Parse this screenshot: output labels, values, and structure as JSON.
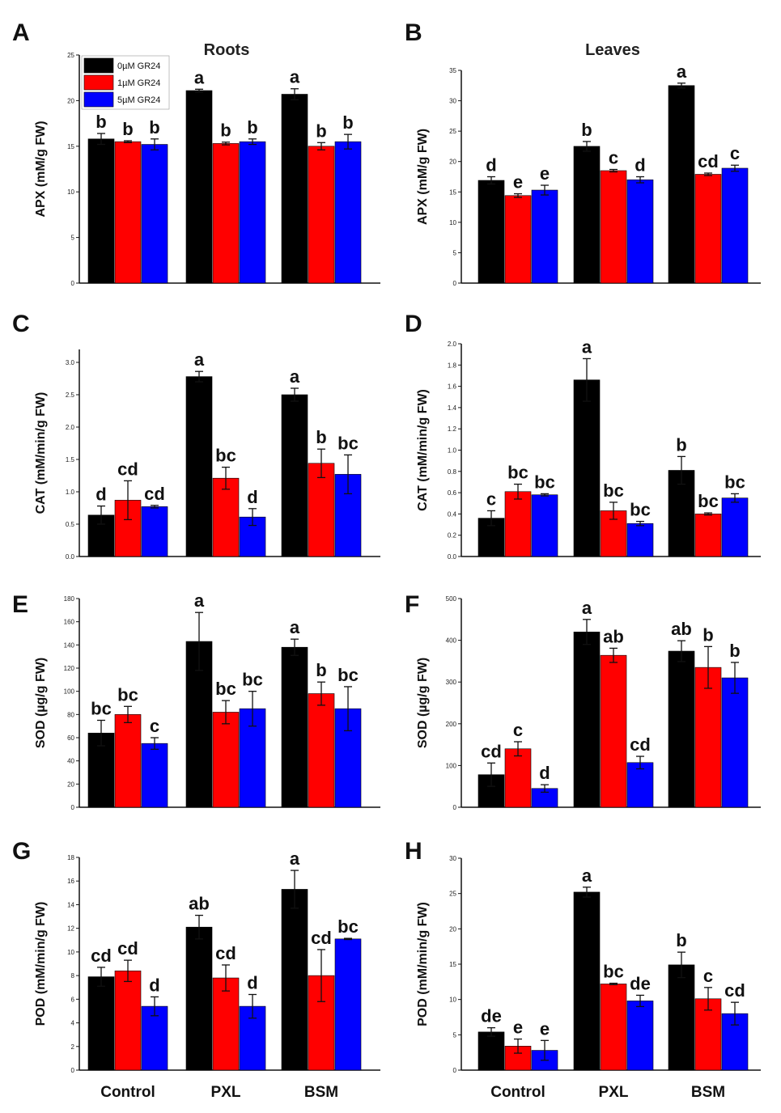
{
  "column_titles": {
    "left": "Roots",
    "right": "Leaves"
  },
  "categories": [
    "Control",
    "PXL",
    "BSM"
  ],
  "legend": [
    {
      "name": "0µM GR24",
      "color": "#000000"
    },
    {
      "name": "1µM GR24",
      "color": "#ff0000"
    },
    {
      "name": "5µM GR24",
      "color": "#0000ff"
    }
  ],
  "chart_data": [
    {
      "panel": "A",
      "type": "bar",
      "title": "Roots",
      "ylabel": "APX (mM/g FW)",
      "categories": [
        "Control",
        "PXL",
        "BSM"
      ],
      "ylim": [
        0,
        25
      ],
      "yticks": [
        0,
        5,
        10,
        15,
        20,
        25
      ],
      "series": [
        {
          "name": "0µM GR24",
          "values": [
            15.8,
            21.1,
            20.7
          ],
          "errors": [
            0.6,
            0.15,
            0.6
          ],
          "labels": [
            "b",
            "a",
            "a"
          ]
        },
        {
          "name": "1µM GR24",
          "values": [
            15.5,
            15.3,
            15.0
          ],
          "errors": [
            0.1,
            0.15,
            0.4
          ],
          "labels": [
            "b",
            "b",
            "b"
          ]
        },
        {
          "name": "5µM GR24",
          "values": [
            15.2,
            15.5,
            15.5
          ],
          "errors": [
            0.6,
            0.3,
            0.8
          ],
          "labels": [
            "b",
            "b",
            "b"
          ]
        }
      ]
    },
    {
      "panel": "B",
      "type": "bar",
      "title": "Leaves",
      "ylabel": "APX (mM/g FW)",
      "categories": [
        "Control",
        "PXL",
        "BSM"
      ],
      "ylim": [
        0,
        35
      ],
      "yticks": [
        0,
        5,
        10,
        15,
        20,
        25,
        30,
        35
      ],
      "series": [
        {
          "name": "0µM GR24",
          "values": [
            16.9,
            22.5,
            32.5
          ],
          "errors": [
            0.6,
            0.8,
            0.4
          ],
          "labels": [
            "d",
            "b",
            "a"
          ]
        },
        {
          "name": "1µM GR24",
          "values": [
            14.4,
            18.5,
            17.9
          ],
          "errors": [
            0.3,
            0.2,
            0.2
          ],
          "labels": [
            "e",
            "c",
            "cd"
          ]
        },
        {
          "name": "5µM GR24",
          "values": [
            15.3,
            17.0,
            18.9
          ],
          "errors": [
            0.8,
            0.5,
            0.5
          ],
          "labels": [
            "e",
            "d",
            "c"
          ]
        }
      ]
    },
    {
      "panel": "C",
      "type": "bar",
      "title": "",
      "ylabel": "CAT (mM/min/g FW)",
      "categories": [
        "Control",
        "PXL",
        "BSM"
      ],
      "ylim": [
        0,
        3.2
      ],
      "yticks": [
        0.0,
        0.5,
        1.0,
        1.5,
        2.0,
        2.5,
        3.0
      ],
      "series": [
        {
          "name": "0µM GR24",
          "values": [
            0.64,
            2.78,
            2.5
          ],
          "errors": [
            0.14,
            0.08,
            0.1
          ],
          "labels": [
            "d",
            "a",
            "a"
          ]
        },
        {
          "name": "1µM GR24",
          "values": [
            0.87,
            1.21,
            1.44
          ],
          "errors": [
            0.3,
            0.17,
            0.22
          ],
          "labels": [
            "cd",
            "bc",
            "b"
          ]
        },
        {
          "name": "5µM GR24",
          "values": [
            0.77,
            0.61,
            1.27
          ],
          "errors": [
            0.02,
            0.13,
            0.3
          ],
          "labels": [
            "cd",
            "d",
            "bc"
          ]
        }
      ]
    },
    {
      "panel": "D",
      "type": "bar",
      "title": "",
      "ylabel": "CAT (mM/min/g FW)",
      "categories": [
        "Control",
        "PXL",
        "BSM"
      ],
      "ylim": [
        0,
        2.0
      ],
      "yticks": [
        0.0,
        0.2,
        0.4,
        0.6,
        0.8,
        1.0,
        1.2,
        1.4,
        1.6,
        1.8,
        2.0
      ],
      "series": [
        {
          "name": "0µM GR24",
          "values": [
            0.36,
            1.66,
            0.81
          ],
          "errors": [
            0.07,
            0.2,
            0.13
          ],
          "labels": [
            "c",
            "a",
            "b"
          ]
        },
        {
          "name": "1µM GR24",
          "values": [
            0.61,
            0.43,
            0.4
          ],
          "errors": [
            0.07,
            0.08,
            0.01
          ],
          "labels": [
            "bc",
            "bc",
            "bc"
          ]
        },
        {
          "name": "5µM GR24",
          "values": [
            0.58,
            0.31,
            0.55
          ],
          "errors": [
            0.01,
            0.02,
            0.04
          ],
          "labels": [
            "bc",
            "bc",
            "bc"
          ]
        }
      ]
    },
    {
      "panel": "E",
      "type": "bar",
      "title": "",
      "ylabel": "SOD (µg/g FW)",
      "categories": [
        "Control",
        "PXL",
        "BSM"
      ],
      "ylim": [
        0,
        180
      ],
      "yticks": [
        0,
        20,
        40,
        60,
        80,
        100,
        120,
        140,
        160,
        180
      ],
      "series": [
        {
          "name": "0µM GR24",
          "values": [
            64,
            143,
            138
          ],
          "errors": [
            11,
            25,
            7
          ],
          "labels": [
            "bc",
            "a",
            "a"
          ]
        },
        {
          "name": "1µM GR24",
          "values": [
            80,
            82,
            98
          ],
          "errors": [
            7,
            10,
            10
          ],
          "labels": [
            "bc",
            "bc",
            "b"
          ]
        },
        {
          "name": "5µM GR24",
          "values": [
            55,
            85,
            85
          ],
          "errors": [
            5,
            15,
            19
          ],
          "labels": [
            "c",
            "bc",
            "bc"
          ]
        }
      ]
    },
    {
      "panel": "F",
      "type": "bar",
      "title": "",
      "ylabel": "SOD (µg/g FW)",
      "categories": [
        "Control",
        "PXL",
        "BSM"
      ],
      "ylim": [
        0,
        500
      ],
      "yticks": [
        0,
        100,
        200,
        300,
        400,
        500
      ],
      "series": [
        {
          "name": "0µM GR24",
          "values": [
            78,
            420,
            374
          ],
          "errors": [
            28,
            30,
            25
          ],
          "labels": [
            "cd",
            "a",
            "ab"
          ]
        },
        {
          "name": "1µM GR24",
          "values": [
            140,
            364,
            335
          ],
          "errors": [
            17,
            17,
            50
          ],
          "labels": [
            "c",
            "ab",
            "b"
          ]
        },
        {
          "name": "5µM GR24",
          "values": [
            45,
            107,
            310
          ],
          "errors": [
            9,
            15,
            37
          ],
          "labels": [
            "d",
            "cd",
            "b"
          ]
        }
      ]
    },
    {
      "panel": "G",
      "type": "bar",
      "title": "",
      "ylabel": "POD (mM/min/g FW)",
      "categories": [
        "Control",
        "PXL",
        "BSM"
      ],
      "ylim": [
        0,
        18
      ],
      "yticks": [
        0,
        2,
        4,
        6,
        8,
        10,
        12,
        14,
        16,
        18
      ],
      "series": [
        {
          "name": "0µM GR24",
          "values": [
            7.9,
            12.1,
            15.3
          ],
          "errors": [
            0.8,
            1.0,
            1.6
          ],
          "labels": [
            "cd",
            "ab",
            "a"
          ]
        },
        {
          "name": "1µM GR24",
          "values": [
            8.4,
            7.8,
            8.0
          ],
          "errors": [
            0.9,
            1.1,
            2.2
          ],
          "labels": [
            "cd",
            "cd",
            "cd"
          ]
        },
        {
          "name": "5µM GR24",
          "values": [
            5.4,
            5.4,
            11.1
          ],
          "errors": [
            0.8,
            1.0,
            0.05
          ],
          "labels": [
            "d",
            "d",
            "bc"
          ]
        }
      ]
    },
    {
      "panel": "H",
      "type": "bar",
      "title": "",
      "ylabel": "POD (mM/min/g FW)",
      "categories": [
        "Control",
        "PXL",
        "BSM"
      ],
      "ylim": [
        0,
        30
      ],
      "yticks": [
        0,
        5,
        10,
        15,
        20,
        25,
        30
      ],
      "series": [
        {
          "name": "0µM GR24",
          "values": [
            5.4,
            25.2,
            14.9
          ],
          "errors": [
            0.6,
            0.7,
            1.8
          ],
          "labels": [
            "de",
            "a",
            "b"
          ]
        },
        {
          "name": "1µM GR24",
          "values": [
            3.4,
            12.2,
            10.1
          ],
          "errors": [
            1.0,
            0.1,
            1.6
          ],
          "labels": [
            "e",
            "bc",
            "c"
          ]
        },
        {
          "name": "5µM GR24",
          "values": [
            2.8,
            9.8,
            8.0
          ],
          "errors": [
            1.4,
            0.8,
            1.6
          ],
          "labels": [
            "e",
            "de",
            "cd"
          ]
        }
      ]
    }
  ]
}
